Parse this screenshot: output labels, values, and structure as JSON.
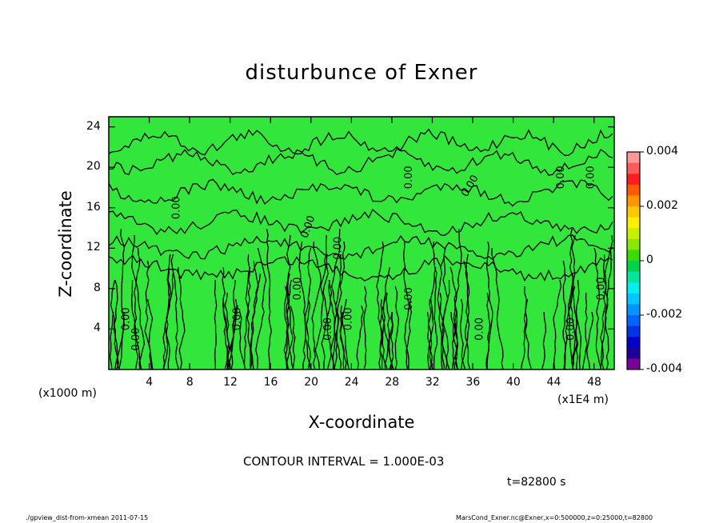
{
  "title": "disturbunce of Exner",
  "ylabel": "Z-coordinate",
  "xlabel": "X-coordinate",
  "x_unit_label": "(x1000 m)",
  "x_unit_label_right": "(x1E4 m)",
  "contour_interval_label": "CONTOUR INTERVAL = 1.000E-03",
  "time_label": "t=82800 s",
  "footer_left": "./gpview_dist-from-xmean   2011-07-15",
  "footer_right": "MarsCond_Exner.nc@Exner,x=0:500000,z=0:25000,t=82800",
  "contour_label_text": "0.00",
  "colors": {
    "field": "#33e63c",
    "contour": "#000000"
  },
  "chart_data": {
    "type": "heatmap",
    "title": "disturbunce of Exner",
    "xlabel": "X-coordinate",
    "ylabel": "Z-coordinate",
    "x_ticks": [
      "4",
      "8",
      "12",
      "16",
      "20",
      "24",
      "28",
      "32",
      "36",
      "40",
      "44",
      "48"
    ],
    "y_ticks": [
      "4",
      "8",
      "12",
      "16",
      "20",
      "24"
    ],
    "xlim": [
      0,
      50
    ],
    "ylim": [
      0,
      25
    ],
    "colorbar": {
      "ticks": [
        "0.004",
        "0.002",
        "0",
        "-0.002",
        "-0.004"
      ],
      "range": [
        -0.004,
        0.004
      ],
      "colors": [
        "#ff9999",
        "#ff5a5a",
        "#ff1e1e",
        "#ff5a00",
        "#ff9600",
        "#ffc800",
        "#fff000",
        "#c8f000",
        "#8ce600",
        "#3cdc00",
        "#00d24b",
        "#00e69b",
        "#00f0f0",
        "#00c8ff",
        "#0096ff",
        "#0064ff",
        "#0032e6",
        "#0000c8",
        "#1e0096",
        "#780096"
      ]
    },
    "contour_interval": 0.001
  }
}
